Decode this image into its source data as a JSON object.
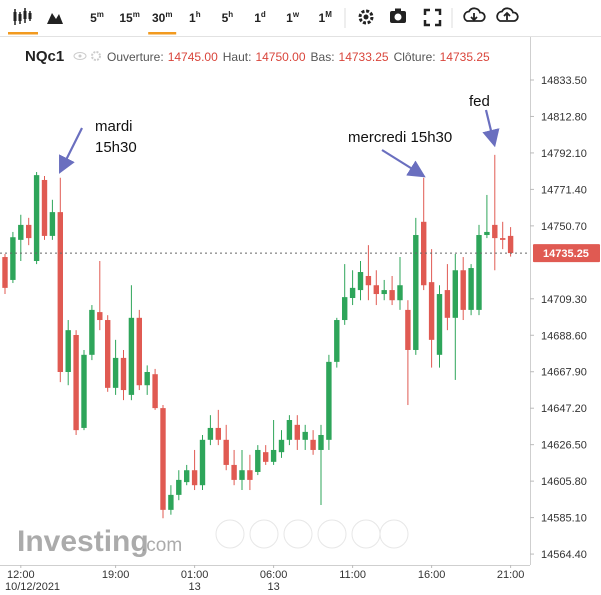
{
  "toolbar": {
    "intervals": [
      {
        "label": "5",
        "unit": "m"
      },
      {
        "label": "15",
        "unit": "m"
      },
      {
        "label": "30",
        "unit": "m",
        "active": true
      },
      {
        "label": "1",
        "unit": "h"
      },
      {
        "label": "5",
        "unit": "h"
      },
      {
        "label": "1",
        "unit": "d"
      },
      {
        "label": "1",
        "unit": "w"
      },
      {
        "label": "1",
        "unit": "M"
      }
    ]
  },
  "chart_data": {
    "type": "candlestick",
    "title": "NQc1",
    "header": [
      {
        "name": "Ouverture:",
        "value": "14745.00"
      },
      {
        "name": "Haut:",
        "value": "14750.00"
      },
      {
        "name": "Bas:",
        "value": "14733.25"
      },
      {
        "name": "Clôture:",
        "value": "14735.25"
      }
    ],
    "categories": [
      null,
      null,
      "12:00",
      null,
      null,
      null,
      null,
      null,
      null,
      null,
      null,
      null,
      null,
      null,
      "19:00",
      null,
      null,
      null,
      null,
      null,
      null,
      null,
      null,
      null,
      "01:00",
      null,
      null,
      null,
      null,
      null,
      null,
      null,
      null,
      null,
      "06:00",
      null,
      null,
      null,
      null,
      null,
      null,
      null,
      null,
      null,
      "11:00",
      null,
      null,
      null,
      null,
      null,
      null,
      null,
      null,
      null,
      "16:00",
      null,
      null,
      null,
      null,
      null,
      null,
      null,
      null,
      null,
      "21:00"
    ],
    "category_dates": [
      null,
      null,
      "10/12/2021",
      null,
      null,
      null,
      null,
      null,
      null,
      null,
      null,
      null,
      null,
      null,
      null,
      null,
      null,
      null,
      null,
      null,
      null,
      null,
      null,
      null,
      "13",
      null,
      null,
      null,
      null,
      null,
      null,
      null,
      null,
      null,
      "13",
      null,
      null,
      null,
      null,
      null,
      null,
      null,
      null,
      null,
      null,
      null,
      null,
      null,
      null,
      null,
      null,
      null,
      null,
      null,
      null,
      null,
      null,
      null,
      null,
      null,
      null,
      null,
      null,
      null,
      null
    ],
    "open": [
      14733,
      14720,
      14742.75,
      14751.25,
      14730.75,
      14776.75,
      14745,
      14758.5,
      14667.75,
      14688.75,
      14636,
      14677.5,
      14701.75,
      14697.25,
      14658.75,
      14675.75,
      14654.75,
      14698.5,
      14660.25,
      14666.5,
      14647.25,
      14589.5,
      14598,
      14605.25,
      14612,
      14603.5,
      14629.25,
      14636,
      14629.25,
      14615,
      14606.5,
      14612,
      14611,
      14622.25,
      14616.75,
      14622.25,
      14629.25,
      14637.75,
      14629.25,
      14629.25,
      14623.5,
      14629.25,
      14673.5,
      14697.25,
      14709.75,
      14714.25,
      14722.25,
      14717,
      14712,
      14714.25,
      14708.5,
      14703,
      14680.25,
      14753,
      14718.75,
      14677.5,
      14714.25,
      14698.5,
      14725.5,
      14703,
      14703,
      14745.5,
      14751.25,
      14743.75,
      14745
    ],
    "high": [
      14734.75,
      14747.25,
      14757,
      14755.25,
      14781.25,
      14779,
      14765.5,
      14778,
      14697.25,
      14691.5,
      14680.25,
      14705.75,
      14730.75,
      14700,
      14686,
      14680.25,
      14717,
      14703,
      14671.5,
      14669.5,
      14649,
      14603.5,
      14612,
      14615,
      14623.5,
      14632,
      14643.25,
      14646.25,
      14637.75,
      14623.5,
      14623.5,
      14620.75,
      14626.25,
      14626.25,
      14640.5,
      14634.75,
      14643.25,
      14643.25,
      14637.75,
      14634.75,
      14637.75,
      14677.5,
      14698.5,
      14729,
      14725.5,
      14730.75,
      14739.75,
      14725.5,
      14720,
      14722.25,
      14733,
      14708.5,
      14755.25,
      14778,
      14737.5,
      14717,
      14729,
      14734.75,
      14733,
      14729,
      14751.25,
      14768.25,
      14791,
      14753,
      14750
    ],
    "low": [
      14712,
      14718.25,
      14730.75,
      14739.75,
      14729,
      14742.75,
      14742.75,
      14662,
      14660.25,
      14632,
      14634.75,
      14674.5,
      14691.5,
      14656.5,
      14654.75,
      14651.75,
      14651.75,
      14657.5,
      14654.75,
      14646.25,
      14584.75,
      14586.75,
      14595,
      14603.5,
      14600.75,
      14600.75,
      14626.25,
      14626.25,
      14612,
      14603.5,
      14600.75,
      14600.75,
      14609.25,
      14615,
      14615,
      14619,
      14626.25,
      14623.5,
      14623.5,
      14620.75,
      14592.25,
      14623.5,
      14670.25,
      14694.5,
      14705.75,
      14708.5,
      14708.5,
      14705.75,
      14708.5,
      14705.75,
      14703,
      14649,
      14677.5,
      14714.25,
      14670.25,
      14670.25,
      14691.5,
      14663.25,
      14697.25,
      14700,
      14700,
      14743.75,
      14725.5,
      14737.5,
      14733.25
    ],
    "close": [
      14715.5,
      14744.25,
      14751.25,
      14743.75,
      14779.5,
      14745,
      14758.5,
      14667.75,
      14691.5,
      14634.75,
      14677.5,
      14703,
      14697.25,
      14658.75,
      14675.75,
      14657.5,
      14698.5,
      14660.25,
      14667.75,
      14647.25,
      14589.5,
      14598,
      14606.5,
      14612,
      14603.5,
      14629.25,
      14636,
      14629.25,
      14615,
      14606.5,
      14612,
      14606.5,
      14623.5,
      14616.75,
      14623.5,
      14629.25,
      14640.5,
      14629.25,
      14633.75,
      14623.5,
      14632,
      14673.5,
      14697.25,
      14710.25,
      14715.5,
      14724.5,
      14717,
      14712,
      14714.25,
      14708.5,
      14717,
      14680.25,
      14745.5,
      14717,
      14686,
      14712,
      14698.5,
      14725.5,
      14703,
      14726.75,
      14745.5,
      14747.25,
      14743.75,
      14742.75,
      14735.25
    ],
    "colors": {
      "up": "#2ea55a",
      "down": "#e05a52"
    },
    "ylim": [
      14558.2,
      14857.9
    ],
    "yticks": [
      {
        "value": 14833.5,
        "label": "14833.50"
      },
      {
        "value": 14812.8,
        "label": "14812.80"
      },
      {
        "value": 14792.1,
        "label": "14792.10"
      },
      {
        "value": 14771.4,
        "label": "14771.40"
      },
      {
        "value": 14750.7,
        "label": "14750.70"
      },
      {
        "value": 14709.3,
        "label": "14709.30"
      },
      {
        "value": 14688.6,
        "label": "14688.60"
      },
      {
        "value": 14667.9,
        "label": "14667.90"
      },
      {
        "value": 14647.2,
        "label": "14647.20"
      },
      {
        "value": 14626.5,
        "label": "14626.50"
      },
      {
        "value": 14605.8,
        "label": "14605.80"
      },
      {
        "value": 14585.1,
        "label": "14585.10"
      },
      {
        "value": 14564.4,
        "label": "14564.40"
      }
    ],
    "grid": false,
    "last_price": {
      "value": 14735.25,
      "label": "14735.25"
    },
    "annotations": [
      {
        "lines": [
          "mardi",
          "15h30"
        ]
      },
      {
        "lines": [
          "mercredi 15h30"
        ]
      },
      {
        "lines": [
          "fed"
        ]
      }
    ],
    "watermark": [
      "Investing",
      ".com"
    ]
  }
}
